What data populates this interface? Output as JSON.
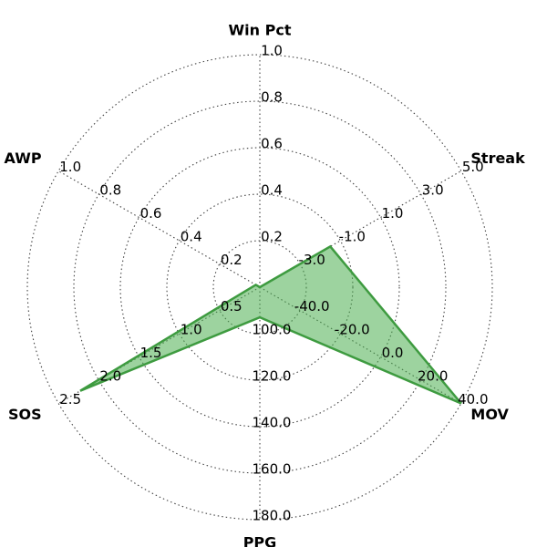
{
  "chart_data": {
    "type": "radar",
    "title": "",
    "grid": true,
    "fill_color": "#4caf50",
    "line_color": "#3e9b40",
    "axes": [
      {
        "name": "Win Pct",
        "min": 0.0,
        "max": 1.0,
        "ticks": [
          "0.2",
          "0.4",
          "0.6",
          "0.8",
          "1.0"
        ]
      },
      {
        "name": "Streak",
        "min": -5.0,
        "max": 5.0,
        "ticks": [
          "-3.0",
          "-1.0",
          "1.0",
          "3.0",
          "5.0"
        ]
      },
      {
        "name": "MOV",
        "min": -60.0,
        "max": 40.0,
        "ticks": [
          "-40.0",
          "-20.0",
          "0.0",
          "20.0",
          "40.0"
        ]
      },
      {
        "name": "PPG",
        "min": 80.0,
        "max": 180.0,
        "ticks": [
          "100.0",
          "120.0",
          "140.0",
          "160.0",
          "180.0"
        ]
      },
      {
        "name": "SOS",
        "min": 0.0,
        "max": 2.5,
        "ticks": [
          "0.5",
          "1.0",
          "1.5",
          "2.0",
          "2.5"
        ]
      },
      {
        "name": "AWP",
        "min": 0.0,
        "max": 1.0,
        "ticks": [
          "0.2",
          "0.4",
          "0.6",
          "0.8",
          "1.0"
        ]
      }
    ],
    "series": [
      {
        "values": [
          0.0,
          -1.5,
          40.0,
          93.0,
          2.23,
          0.02
        ]
      }
    ]
  }
}
